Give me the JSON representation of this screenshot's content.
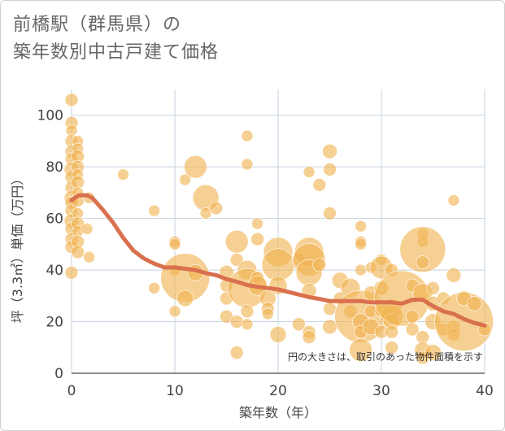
{
  "chart_data": {
    "type": "scatter",
    "title_line1": "前橋駅（群馬県）の",
    "title_line2": "築年数別中古戸建て価格",
    "xlabel": "築年数（年）",
    "ylabel": "坪（3.3㎡）単価（万円）",
    "xlim": [
      0,
      40
    ],
    "ylim": [
      0,
      110
    ],
    "xticks": [
      0,
      10,
      20,
      30,
      40
    ],
    "yticks": [
      0,
      20,
      40,
      60,
      80,
      100
    ],
    "note": "円の大きさは、取引のあった物件面積を示す",
    "colors": {
      "bubble": "#f0b350",
      "line": "#d9704e",
      "grid": "#c5d3e0"
    },
    "points": [
      {
        "x": 0,
        "y": 106,
        "s": 8
      },
      {
        "x": 0,
        "y": 97,
        "s": 8
      },
      {
        "x": 0,
        "y": 94,
        "s": 7
      },
      {
        "x": 0,
        "y": 90,
        "s": 8
      },
      {
        "x": 0,
        "y": 86,
        "s": 8
      },
      {
        "x": 0,
        "y": 83,
        "s": 8
      },
      {
        "x": 0,
        "y": 79,
        "s": 9
      },
      {
        "x": 0,
        "y": 76,
        "s": 8
      },
      {
        "x": 0,
        "y": 72,
        "s": 8
      },
      {
        "x": 0,
        "y": 68,
        "s": 9
      },
      {
        "x": 0,
        "y": 66,
        "s": 8
      },
      {
        "x": 0,
        "y": 63,
        "s": 8
      },
      {
        "x": 0,
        "y": 59,
        "s": 9
      },
      {
        "x": 0,
        "y": 56,
        "s": 8
      },
      {
        "x": 0,
        "y": 52,
        "s": 8
      },
      {
        "x": 0,
        "y": 49,
        "s": 8
      },
      {
        "x": 0,
        "y": 39,
        "s": 8
      },
      {
        "x": 0.6,
        "y": 90,
        "s": 7
      },
      {
        "x": 0.6,
        "y": 87,
        "s": 7
      },
      {
        "x": 0.6,
        "y": 84,
        "s": 8
      },
      {
        "x": 0.6,
        "y": 80,
        "s": 8
      },
      {
        "x": 0.6,
        "y": 77,
        "s": 7
      },
      {
        "x": 0.6,
        "y": 74,
        "s": 8
      },
      {
        "x": 0.6,
        "y": 70,
        "s": 7
      },
      {
        "x": 0.6,
        "y": 67,
        "s": 8
      },
      {
        "x": 0.6,
        "y": 62,
        "s": 7
      },
      {
        "x": 0.6,
        "y": 58,
        "s": 8
      },
      {
        "x": 0.6,
        "y": 55,
        "s": 7
      },
      {
        "x": 0.6,
        "y": 51,
        "s": 8
      },
      {
        "x": 0.6,
        "y": 47,
        "s": 8
      },
      {
        "x": 1.7,
        "y": 68,
        "s": 7
      },
      {
        "x": 1.7,
        "y": 45,
        "s": 7
      },
      {
        "x": 1.5,
        "y": 56,
        "s": 7
      },
      {
        "x": 5,
        "y": 77,
        "s": 7
      },
      {
        "x": 8,
        "y": 63,
        "s": 7
      },
      {
        "x": 8,
        "y": 33,
        "s": 7
      },
      {
        "x": 10,
        "y": 51,
        "s": 7
      },
      {
        "x": 10,
        "y": 50,
        "s": 7
      },
      {
        "x": 10,
        "y": 40,
        "s": 7
      },
      {
        "x": 10,
        "y": 24,
        "s": 7
      },
      {
        "x": 11,
        "y": 75,
        "s": 7
      },
      {
        "x": 11,
        "y": 37,
        "s": 30
      },
      {
        "x": 11,
        "y": 29,
        "s": 10
      },
      {
        "x": 12,
        "y": 80,
        "s": 14
      },
      {
        "x": 12,
        "y": 39,
        "s": 10
      },
      {
        "x": 13,
        "y": 68,
        "s": 16
      },
      {
        "x": 13,
        "y": 62,
        "s": 7
      },
      {
        "x": 14,
        "y": 64,
        "s": 8
      },
      {
        "x": 15,
        "y": 39,
        "s": 9
      },
      {
        "x": 15,
        "y": 34,
        "s": 8
      },
      {
        "x": 15,
        "y": 29,
        "s": 8
      },
      {
        "x": 15,
        "y": 22,
        "s": 8
      },
      {
        "x": 16,
        "y": 51,
        "s": 14
      },
      {
        "x": 16,
        "y": 44,
        "s": 8
      },
      {
        "x": 16,
        "y": 20,
        "s": 8
      },
      {
        "x": 16,
        "y": 8,
        "s": 8
      },
      {
        "x": 17,
        "y": 92,
        "s": 7
      },
      {
        "x": 17,
        "y": 81,
        "s": 7
      },
      {
        "x": 17,
        "y": 40,
        "s": 12
      },
      {
        "x": 17,
        "y": 33,
        "s": 24
      },
      {
        "x": 17,
        "y": 24,
        "s": 8
      },
      {
        "x": 17,
        "y": 19,
        "s": 7
      },
      {
        "x": 18,
        "y": 58,
        "s": 7
      },
      {
        "x": 18,
        "y": 52,
        "s": 8
      },
      {
        "x": 18,
        "y": 37,
        "s": 8
      },
      {
        "x": 18,
        "y": 34,
        "s": 12
      },
      {
        "x": 19,
        "y": 29,
        "s": 10
      },
      {
        "x": 19,
        "y": 25,
        "s": 8
      },
      {
        "x": 19,
        "y": 23,
        "s": 7
      },
      {
        "x": 20,
        "y": 47,
        "s": 18
      },
      {
        "x": 20,
        "y": 42,
        "s": 20
      },
      {
        "x": 20,
        "y": 34,
        "s": 11
      },
      {
        "x": 20,
        "y": 15,
        "s": 10
      },
      {
        "x": 22,
        "y": 44,
        "s": 8
      },
      {
        "x": 22,
        "y": 19,
        "s": 8
      },
      {
        "x": 23,
        "y": 78,
        "s": 7
      },
      {
        "x": 23,
        "y": 47,
        "s": 18
      },
      {
        "x": 23,
        "y": 44,
        "s": 20
      },
      {
        "x": 23,
        "y": 39,
        "s": 16
      },
      {
        "x": 23,
        "y": 32,
        "s": 9
      },
      {
        "x": 23,
        "y": 16,
        "s": 8
      },
      {
        "x": 23,
        "y": 14,
        "s": 8
      },
      {
        "x": 24,
        "y": 73,
        "s": 8
      },
      {
        "x": 24,
        "y": 42,
        "s": 8
      },
      {
        "x": 25,
        "y": 86,
        "s": 9
      },
      {
        "x": 25,
        "y": 79,
        "s": 8
      },
      {
        "x": 25,
        "y": 62,
        "s": 8
      },
      {
        "x": 25,
        "y": 25,
        "s": 8
      },
      {
        "x": 25,
        "y": 18,
        "s": 9
      },
      {
        "x": 26,
        "y": 36,
        "s": 10
      },
      {
        "x": 26,
        "y": 29,
        "s": 8
      },
      {
        "x": 27,
        "y": 33,
        "s": 12
      },
      {
        "x": 27,
        "y": 24,
        "s": 8
      },
      {
        "x": 28,
        "y": 57,
        "s": 7
      },
      {
        "x": 28,
        "y": 51,
        "s": 7
      },
      {
        "x": 28,
        "y": 50,
        "s": 7
      },
      {
        "x": 28,
        "y": 40,
        "s": 7
      },
      {
        "x": 28,
        "y": 22,
        "s": 32
      },
      {
        "x": 28,
        "y": 20,
        "s": 10
      },
      {
        "x": 28,
        "y": 16,
        "s": 8
      },
      {
        "x": 28,
        "y": 9,
        "s": 14
      },
      {
        "x": 29,
        "y": 41,
        "s": 7
      },
      {
        "x": 29,
        "y": 31,
        "s": 9
      },
      {
        "x": 29,
        "y": 24,
        "s": 8
      },
      {
        "x": 29,
        "y": 18,
        "s": 10
      },
      {
        "x": 30,
        "y": 44,
        "s": 7
      },
      {
        "x": 30,
        "y": 41,
        "s": 14
      },
      {
        "x": 30,
        "y": 33,
        "s": 9
      },
      {
        "x": 30,
        "y": 24,
        "s": 8
      },
      {
        "x": 30,
        "y": 16,
        "s": 8
      },
      {
        "x": 31,
        "y": 40,
        "s": 8
      },
      {
        "x": 31,
        "y": 25,
        "s": 12
      },
      {
        "x": 31,
        "y": 22,
        "s": 14
      },
      {
        "x": 31,
        "y": 20,
        "s": 10
      },
      {
        "x": 31,
        "y": 16,
        "s": 8
      },
      {
        "x": 31,
        "y": 10,
        "s": 8
      },
      {
        "x": 32,
        "y": 29,
        "s": 34
      },
      {
        "x": 33,
        "y": 34,
        "s": 8
      },
      {
        "x": 33,
        "y": 22,
        "s": 8
      },
      {
        "x": 33,
        "y": 17,
        "s": 8
      },
      {
        "x": 34,
        "y": 54,
        "s": 7
      },
      {
        "x": 34,
        "y": 51,
        "s": 7
      },
      {
        "x": 34,
        "y": 48,
        "s": 28
      },
      {
        "x": 34,
        "y": 43,
        "s": 8
      },
      {
        "x": 34,
        "y": 31,
        "s": 12
      },
      {
        "x": 34,
        "y": 14,
        "s": 8
      },
      {
        "x": 34,
        "y": 9,
        "s": 10
      },
      {
        "x": 34,
        "y": 6,
        "s": 8
      },
      {
        "x": 35,
        "y": 33,
        "s": 8
      },
      {
        "x": 35,
        "y": 27,
        "s": 9
      },
      {
        "x": 35,
        "y": 20,
        "s": 10
      },
      {
        "x": 35,
        "y": 8,
        "s": 10
      },
      {
        "x": 36,
        "y": 29,
        "s": 8
      },
      {
        "x": 36,
        "y": 17,
        "s": 8
      },
      {
        "x": 37,
        "y": 67,
        "s": 7
      },
      {
        "x": 37,
        "y": 38,
        "s": 9
      },
      {
        "x": 37,
        "y": 18,
        "s": 8
      },
      {
        "x": 37,
        "y": 15,
        "s": 8
      },
      {
        "x": 38,
        "y": 20,
        "s": 36
      },
      {
        "x": 38,
        "y": 29,
        "s": 9
      },
      {
        "x": 39,
        "y": 27,
        "s": 9
      },
      {
        "x": 40,
        "y": 17,
        "s": 8
      }
    ],
    "trend": [
      [
        0,
        67
      ],
      [
        0.3,
        68
      ],
      [
        0.7,
        69
      ],
      [
        1.5,
        69
      ],
      [
        2,
        68
      ],
      [
        3,
        63.5
      ],
      [
        4,
        58.5
      ],
      [
        5,
        52.5
      ],
      [
        6,
        47.5
      ],
      [
        7,
        44.5
      ],
      [
        8,
        42.5
      ],
      [
        9,
        41
      ],
      [
        10,
        41
      ],
      [
        11,
        40.5
      ],
      [
        12,
        40
      ],
      [
        13,
        38.8
      ],
      [
        14,
        38
      ],
      [
        15,
        36.5
      ],
      [
        16,
        35.5
      ],
      [
        17,
        34.2
      ],
      [
        18,
        33.5
      ],
      [
        19,
        33
      ],
      [
        20,
        32.5
      ],
      [
        21,
        31.5
      ],
      [
        22,
        30.5
      ],
      [
        23,
        29.5
      ],
      [
        24,
        28.8
      ],
      [
        25,
        28
      ],
      [
        26,
        28
      ],
      [
        27,
        28
      ],
      [
        28,
        28
      ],
      [
        29,
        27.5
      ],
      [
        30,
        27.5
      ],
      [
        31,
        27.5
      ],
      [
        32,
        27
      ],
      [
        33,
        28.5
      ],
      [
        34,
        28.5
      ],
      [
        35,
        26
      ],
      [
        36,
        24
      ],
      [
        37,
        23
      ],
      [
        38,
        21
      ],
      [
        39,
        19.5
      ],
      [
        40,
        18.5
      ]
    ]
  }
}
